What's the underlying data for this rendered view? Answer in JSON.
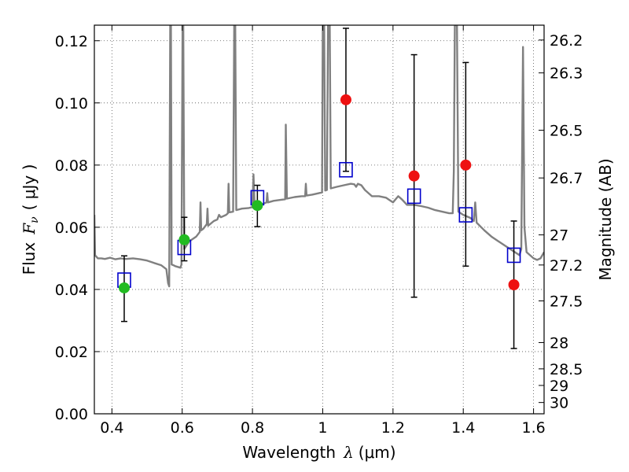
{
  "chart_data": {
    "type": "scatter",
    "xlabel": "Wavelength",
    "xlabel_symbol": "λ",
    "xlabel_unit": "(μm)",
    "ylabel": "Flux",
    "ylabel_symbol": "F",
    "ylabel_subscript": "ν",
    "ylabel_unit": "( μJy )",
    "y2label": "Magnitude (AB)",
    "xlim": [
      0.35,
      1.63
    ],
    "ylim": [
      0.0,
      0.125
    ],
    "grid": true,
    "grid_style": "dotted",
    "x_ticks": [
      0.4,
      0.6,
      0.8,
      1.0,
      1.2,
      1.4,
      1.6
    ],
    "x_tick_labels": [
      "0.4",
      "0.6",
      "0.8",
      "1",
      "1.2",
      "1.4",
      "1.6"
    ],
    "y_ticks": [
      0.0,
      0.02,
      0.04,
      0.06,
      0.08,
      0.1,
      0.12
    ],
    "y_tick_labels": [
      "0.00",
      "0.02",
      "0.04",
      "0.06",
      "0.08",
      "0.10",
      "0.12"
    ],
    "y2_ticks": [
      {
        "label": "26.2",
        "mag": 26.2
      },
      {
        "label": "26.3",
        "mag": 26.3
      },
      {
        "label": "26.5",
        "mag": 26.5
      },
      {
        "label": "26.7",
        "mag": 26.7
      },
      {
        "label": "27",
        "mag": 27.0
      },
      {
        "label": "27.2",
        "mag": 27.2
      },
      {
        "label": "27.5",
        "mag": 27.5
      },
      {
        "label": "28",
        "mag": 28.0
      },
      {
        "label": "28.5",
        "mag": 28.5
      },
      {
        "label": "29",
        "mag": 29.0
      },
      {
        "label": "30",
        "mag": 30.0
      }
    ],
    "colors": {
      "spectrum": "#808080",
      "model": "#0000cc",
      "detection_green": "#22bb22",
      "detection_red": "#ee1111",
      "errorbar": "#000000"
    },
    "series": [
      {
        "marker": "circle",
        "color": "#22bb22",
        "points": [
          {
            "x": 0.435,
            "y": 0.0405,
            "yerr_low": 0.0108,
            "yerr_high": 0.0103
          },
          {
            "x": 0.606,
            "y": 0.056,
            "yerr_low": 0.0068,
            "yerr_high": 0.0072
          },
          {
            "x": 0.814,
            "y": 0.067,
            "yerr_low": 0.0068,
            "yerr_high": 0.0065
          }
        ]
      },
      {
        "marker": "circle",
        "color": "#ee1111",
        "points": [
          {
            "x": 1.066,
            "y": 0.101,
            "yerr_low": 0.023,
            "yerr_high": 0.023
          },
          {
            "x": 1.26,
            "y": 0.0765,
            "yerr_low": 0.039,
            "yerr_high": 0.039
          },
          {
            "x": 1.407,
            "y": 0.08,
            "yerr_low": 0.0325,
            "yerr_high": 0.033
          },
          {
            "x": 1.544,
            "y": 0.0415,
            "yerr_low": 0.0205,
            "yerr_high": 0.0205
          }
        ]
      },
      {
        "marker": "open-square",
        "color": "#0000cc",
        "points": [
          {
            "x": 0.435,
            "y": 0.043
          },
          {
            "x": 0.606,
            "y": 0.0535
          },
          {
            "x": 0.814,
            "y": 0.0695
          },
          {
            "x": 1.066,
            "y": 0.0785
          },
          {
            "x": 1.26,
            "y": 0.07
          },
          {
            "x": 1.407,
            "y": 0.064
          },
          {
            "x": 1.544,
            "y": 0.051
          }
        ]
      },
      {
        "marker": "line",
        "color": "#808080",
        "points": [
          [
            0.35,
            0.064
          ],
          [
            0.352,
            0.051
          ],
          [
            0.36,
            0.05
          ],
          [
            0.37,
            0.05
          ],
          [
            0.38,
            0.0498
          ],
          [
            0.395,
            0.0502
          ],
          [
            0.41,
            0.0497
          ],
          [
            0.425,
            0.05
          ],
          [
            0.44,
            0.0498
          ],
          [
            0.46,
            0.05
          ],
          [
            0.48,
            0.0497
          ],
          [
            0.5,
            0.0493
          ],
          [
            0.52,
            0.0485
          ],
          [
            0.54,
            0.0478
          ],
          [
            0.555,
            0.0465
          ],
          [
            0.56,
            0.042
          ],
          [
            0.563,
            0.041
          ],
          [
            0.566,
            0.125
          ],
          [
            0.568,
            0.125
          ],
          [
            0.57,
            0.048
          ],
          [
            0.575,
            0.0478
          ],
          [
            0.58,
            0.0475
          ],
          [
            0.595,
            0.047
          ],
          [
            0.598,
            0.048
          ],
          [
            0.601,
            0.125
          ],
          [
            0.603,
            0.125
          ],
          [
            0.606,
            0.053
          ],
          [
            0.62,
            0.0555
          ],
          [
            0.64,
            0.057
          ],
          [
            0.65,
            0.0585
          ],
          [
            0.652,
            0.068
          ],
          [
            0.654,
            0.059
          ],
          [
            0.66,
            0.0595
          ],
          [
            0.67,
            0.061
          ],
          [
            0.672,
            0.066
          ],
          [
            0.674,
            0.0605
          ],
          [
            0.69,
            0.062
          ],
          [
            0.7,
            0.0625
          ],
          [
            0.705,
            0.064
          ],
          [
            0.71,
            0.0632
          ],
          [
            0.725,
            0.064
          ],
          [
            0.73,
            0.0645
          ],
          [
            0.732,
            0.074
          ],
          [
            0.734,
            0.0648
          ],
          [
            0.745,
            0.065
          ],
          [
            0.748,
            0.125
          ],
          [
            0.751,
            0.125
          ],
          [
            0.754,
            0.0655
          ],
          [
            0.77,
            0.066
          ],
          [
            0.79,
            0.0662
          ],
          [
            0.8,
            0.0665
          ],
          [
            0.803,
            0.077
          ],
          [
            0.806,
            0.0668
          ],
          [
            0.82,
            0.0672
          ],
          [
            0.83,
            0.0675
          ],
          [
            0.84,
            0.068
          ],
          [
            0.842,
            0.071
          ],
          [
            0.844,
            0.068
          ],
          [
            0.86,
            0.0685
          ],
          [
            0.88,
            0.0688
          ],
          [
            0.893,
            0.069
          ],
          [
            0.895,
            0.093
          ],
          [
            0.898,
            0.0692
          ],
          [
            0.92,
            0.0697
          ],
          [
            0.94,
            0.07
          ],
          [
            0.95,
            0.07
          ],
          [
            0.952,
            0.074
          ],
          [
            0.954,
            0.0702
          ],
          [
            0.97,
            0.0705
          ],
          [
            0.99,
            0.071
          ],
          [
            0.998,
            0.0712
          ],
          [
            1.0,
            0.125
          ],
          [
            1.004,
            0.125
          ],
          [
            1.007,
            0.0718
          ],
          [
            1.012,
            0.072
          ],
          [
            1.015,
            0.125
          ],
          [
            1.02,
            0.125
          ],
          [
            1.023,
            0.0725
          ],
          [
            1.04,
            0.073
          ],
          [
            1.06,
            0.0735
          ],
          [
            1.08,
            0.074
          ],
          [
            1.09,
            0.0738
          ],
          [
            1.095,
            0.073
          ],
          [
            1.1,
            0.074
          ],
          [
            1.11,
            0.0735
          ],
          [
            1.12,
            0.072
          ],
          [
            1.14,
            0.07
          ],
          [
            1.16,
            0.07
          ],
          [
            1.18,
            0.0695
          ],
          [
            1.2,
            0.068
          ],
          [
            1.215,
            0.07
          ],
          [
            1.225,
            0.069
          ],
          [
            1.24,
            0.0672
          ],
          [
            1.26,
            0.0672
          ],
          [
            1.28,
            0.0668
          ],
          [
            1.3,
            0.0663
          ],
          [
            1.32,
            0.0655
          ],
          [
            1.34,
            0.065
          ],
          [
            1.36,
            0.0645
          ],
          [
            1.37,
            0.0645
          ],
          [
            1.373,
            0.078
          ],
          [
            1.376,
            0.125
          ],
          [
            1.382,
            0.125
          ],
          [
            1.386,
            0.065
          ],
          [
            1.4,
            0.064
          ],
          [
            1.42,
            0.063
          ],
          [
            1.43,
            0.062
          ],
          [
            1.434,
            0.068
          ],
          [
            1.438,
            0.0615
          ],
          [
            1.46,
            0.059
          ],
          [
            1.48,
            0.057
          ],
          [
            1.5,
            0.0555
          ],
          [
            1.52,
            0.054
          ],
          [
            1.54,
            0.0525
          ],
          [
            1.56,
            0.051
          ],
          [
            1.565,
            0.053
          ],
          [
            1.57,
            0.118
          ],
          [
            1.574,
            0.06
          ],
          [
            1.58,
            0.052
          ],
          [
            1.59,
            0.051
          ],
          [
            1.6,
            0.05
          ],
          [
            1.61,
            0.0495
          ],
          [
            1.62,
            0.05
          ],
          [
            1.63,
            0.052
          ]
        ]
      }
    ]
  }
}
